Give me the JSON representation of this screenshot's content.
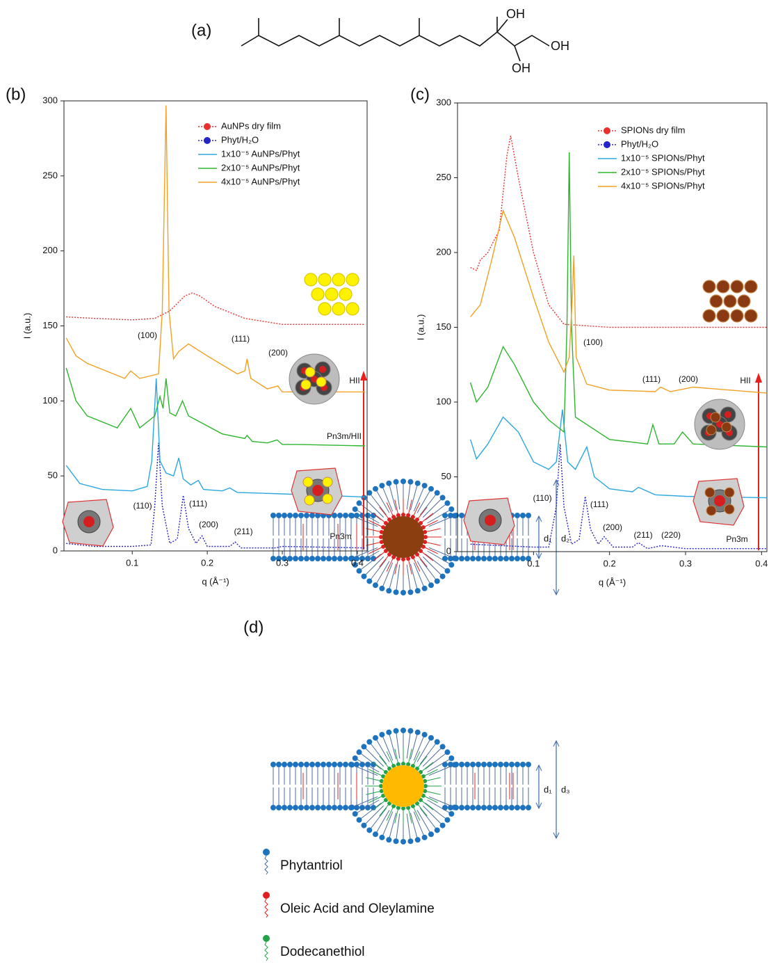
{
  "structure": {
    "label": "(a)",
    "groups": [
      "OH",
      "OH",
      "OH"
    ]
  },
  "chart_data": [
    {
      "type": "line",
      "panel_label": "(b)",
      "xlabel": "q (Å⁻¹)",
      "ylabel": "I (a.u.)",
      "xlim": [
        0.009,
        0.413
      ],
      "ylim": [
        0,
        300
      ],
      "xticks": [
        0.1,
        0.2,
        0.3,
        0.4
      ],
      "yticks": [
        0,
        50,
        100,
        150,
        200,
        250,
        300
      ],
      "series": [
        {
          "name": "AuNPs dry film",
          "color": "#e8312f",
          "linestyle": "dotted",
          "marker": "circle",
          "x": [
            0.012,
            0.05,
            0.1,
            0.13,
            0.15,
            0.17,
            0.18,
            0.19,
            0.21,
            0.25,
            0.3,
            0.41
          ],
          "values": [
            156,
            155,
            154,
            155,
            160,
            170,
            172,
            170,
            163,
            155,
            151,
            151
          ]
        },
        {
          "name": "Phyt/H₂O",
          "color": "#2424c8",
          "linestyle": "dotted",
          "marker": "circle",
          "x": [
            0.012,
            0.05,
            0.1,
            0.125,
            0.13,
            0.135,
            0.14,
            0.15,
            0.16,
            0.168,
            0.175,
            0.185,
            0.193,
            0.2,
            0.23,
            0.237,
            0.245,
            0.29,
            0.3,
            0.41
          ],
          "values": [
            5,
            3,
            3,
            4,
            30,
            72,
            30,
            5,
            8,
            37,
            15,
            5,
            10,
            3,
            3,
            6,
            2,
            2,
            3,
            2
          ]
        },
        {
          "name": "1x10⁻⁵ AuNPs/Phyt",
          "color": "#2aa7e0",
          "linestyle": "solid",
          "x": [
            0.012,
            0.03,
            0.06,
            0.1,
            0.12,
            0.126,
            0.132,
            0.137,
            0.145,
            0.155,
            0.162,
            0.168,
            0.178,
            0.188,
            0.195,
            0.22,
            0.23,
            0.24,
            0.3,
            0.41
          ],
          "values": [
            57,
            45,
            41,
            40,
            43,
            60,
            115,
            60,
            52,
            50,
            62,
            48,
            44,
            47,
            41,
            40,
            42,
            39,
            38,
            36
          ]
        },
        {
          "name": "2x10⁻⁵ AuNPs/Phyt",
          "color": "#2db52d",
          "linestyle": "solid",
          "x": [
            0.012,
            0.025,
            0.04,
            0.08,
            0.098,
            0.11,
            0.13,
            0.137,
            0.141,
            0.145,
            0.15,
            0.158,
            0.167,
            0.175,
            0.19,
            0.22,
            0.25,
            0.253,
            0.26,
            0.28,
            0.293,
            0.3,
            0.32,
            0.41
          ],
          "values": [
            122,
            100,
            90,
            82,
            95,
            82,
            90,
            103,
            95,
            115,
            92,
            90,
            100,
            90,
            86,
            78,
            75,
            77,
            73,
            72,
            74,
            71,
            71,
            70
          ]
        },
        {
          "name": "4x10⁻⁵ AuNPs/Phyt",
          "color": "#f2a122",
          "linestyle": "solid",
          "x": [
            0.012,
            0.025,
            0.04,
            0.09,
            0.098,
            0.11,
            0.135,
            0.14,
            0.145,
            0.149,
            0.155,
            0.162,
            0.175,
            0.2,
            0.24,
            0.25,
            0.253,
            0.258,
            0.28,
            0.294,
            0.3,
            0.41
          ],
          "values": [
            142,
            130,
            125,
            115,
            120,
            115,
            118,
            160,
            297,
            160,
            128,
            133,
            138,
            130,
            118,
            120,
            128,
            115,
            108,
            110,
            106,
            106
          ]
        }
      ],
      "annotations": [
        "(100)",
        "(111)",
        "(200)",
        "(110)",
        "(111)",
        "(200)",
        "(211)",
        "HII",
        "Pn3m/HII",
        "Pn3m"
      ]
    },
    {
      "type": "line",
      "panel_label": "(c)",
      "xlabel": "q (Å⁻¹)",
      "ylabel": "I (a.u.)",
      "xlim": [
        0.0,
        0.407
      ],
      "ylim": [
        0,
        300
      ],
      "xticks": [
        0.1,
        0.2,
        0.3,
        0.4
      ],
      "yticks": [
        0,
        50,
        100,
        150,
        200,
        250,
        300
      ],
      "series": [
        {
          "name": "SPIONs dry film",
          "color": "#e8312f",
          "linestyle": "dotted",
          "marker": "circle",
          "x": [
            0.017,
            0.025,
            0.03,
            0.04,
            0.055,
            0.065,
            0.07,
            0.08,
            0.1,
            0.12,
            0.14,
            0.2,
            0.407
          ],
          "values": [
            190,
            188,
            195,
            200,
            215,
            265,
            278,
            250,
            200,
            165,
            152,
            150,
            150
          ]
        },
        {
          "name": "Phyt/H₂O",
          "color": "#2424c8",
          "linestyle": "dotted",
          "marker": "circle",
          "x": [
            0.017,
            0.1,
            0.12,
            0.13,
            0.135,
            0.14,
            0.15,
            0.16,
            0.168,
            0.175,
            0.185,
            0.193,
            0.205,
            0.23,
            0.238,
            0.25,
            0.268,
            0.3,
            0.407
          ],
          "values": [
            5,
            3,
            3,
            30,
            72,
            30,
            5,
            8,
            37,
            15,
            5,
            10,
            3,
            3,
            6,
            2,
            4,
            2,
            2
          ]
        },
        {
          "name": "1x10⁻⁵ SPIONs/Phyt",
          "color": "#2aa7e0",
          "linestyle": "solid",
          "x": [
            0.017,
            0.025,
            0.04,
            0.06,
            0.08,
            0.1,
            0.12,
            0.13,
            0.138,
            0.145,
            0.155,
            0.17,
            0.18,
            0.2,
            0.23,
            0.238,
            0.26,
            0.3,
            0.407
          ],
          "values": [
            75,
            62,
            72,
            90,
            80,
            60,
            55,
            60,
            95,
            60,
            55,
            70,
            50,
            42,
            40,
            43,
            38,
            37,
            36
          ]
        },
        {
          "name": "2x10⁻⁵ SPIONs/Phyt",
          "color": "#2db52d",
          "linestyle": "solid",
          "x": [
            0.017,
            0.025,
            0.04,
            0.06,
            0.075,
            0.1,
            0.12,
            0.14,
            0.144,
            0.147,
            0.15,
            0.155,
            0.2,
            0.25,
            0.257,
            0.265,
            0.285,
            0.296,
            0.31,
            0.407
          ],
          "values": [
            113,
            100,
            110,
            137,
            125,
            100,
            88,
            80,
            150,
            267,
            150,
            90,
            75,
            72,
            85,
            72,
            72,
            80,
            72,
            70
          ]
        },
        {
          "name": "4x10⁻⁵ SPIONs/Phyt",
          "color": "#f2a122",
          "linestyle": "solid",
          "x": [
            0.017,
            0.03,
            0.045,
            0.06,
            0.075,
            0.1,
            0.12,
            0.14,
            0.147,
            0.151,
            0.153,
            0.156,
            0.17,
            0.2,
            0.26,
            0.267,
            0.28,
            0.31,
            0.407
          ],
          "values": [
            157,
            165,
            195,
            228,
            210,
            170,
            140,
            120,
            130,
            170,
            198,
            130,
            112,
            108,
            107,
            110,
            107,
            110,
            106
          ]
        }
      ],
      "annotations": [
        "(100)",
        "(111)",
        "(200)",
        "(110)",
        "(111)",
        "(200)",
        "(211)",
        "(220)",
        "HII",
        "Pn3m"
      ]
    }
  ],
  "diagram": {
    "label": "(d)",
    "dimensions": [
      "d₁",
      "d₂",
      "d₁",
      "d₃"
    ],
    "legend": [
      "Phytantriol",
      "Oleic Acid and Oleylamine",
      "Dodecanethiol"
    ]
  }
}
